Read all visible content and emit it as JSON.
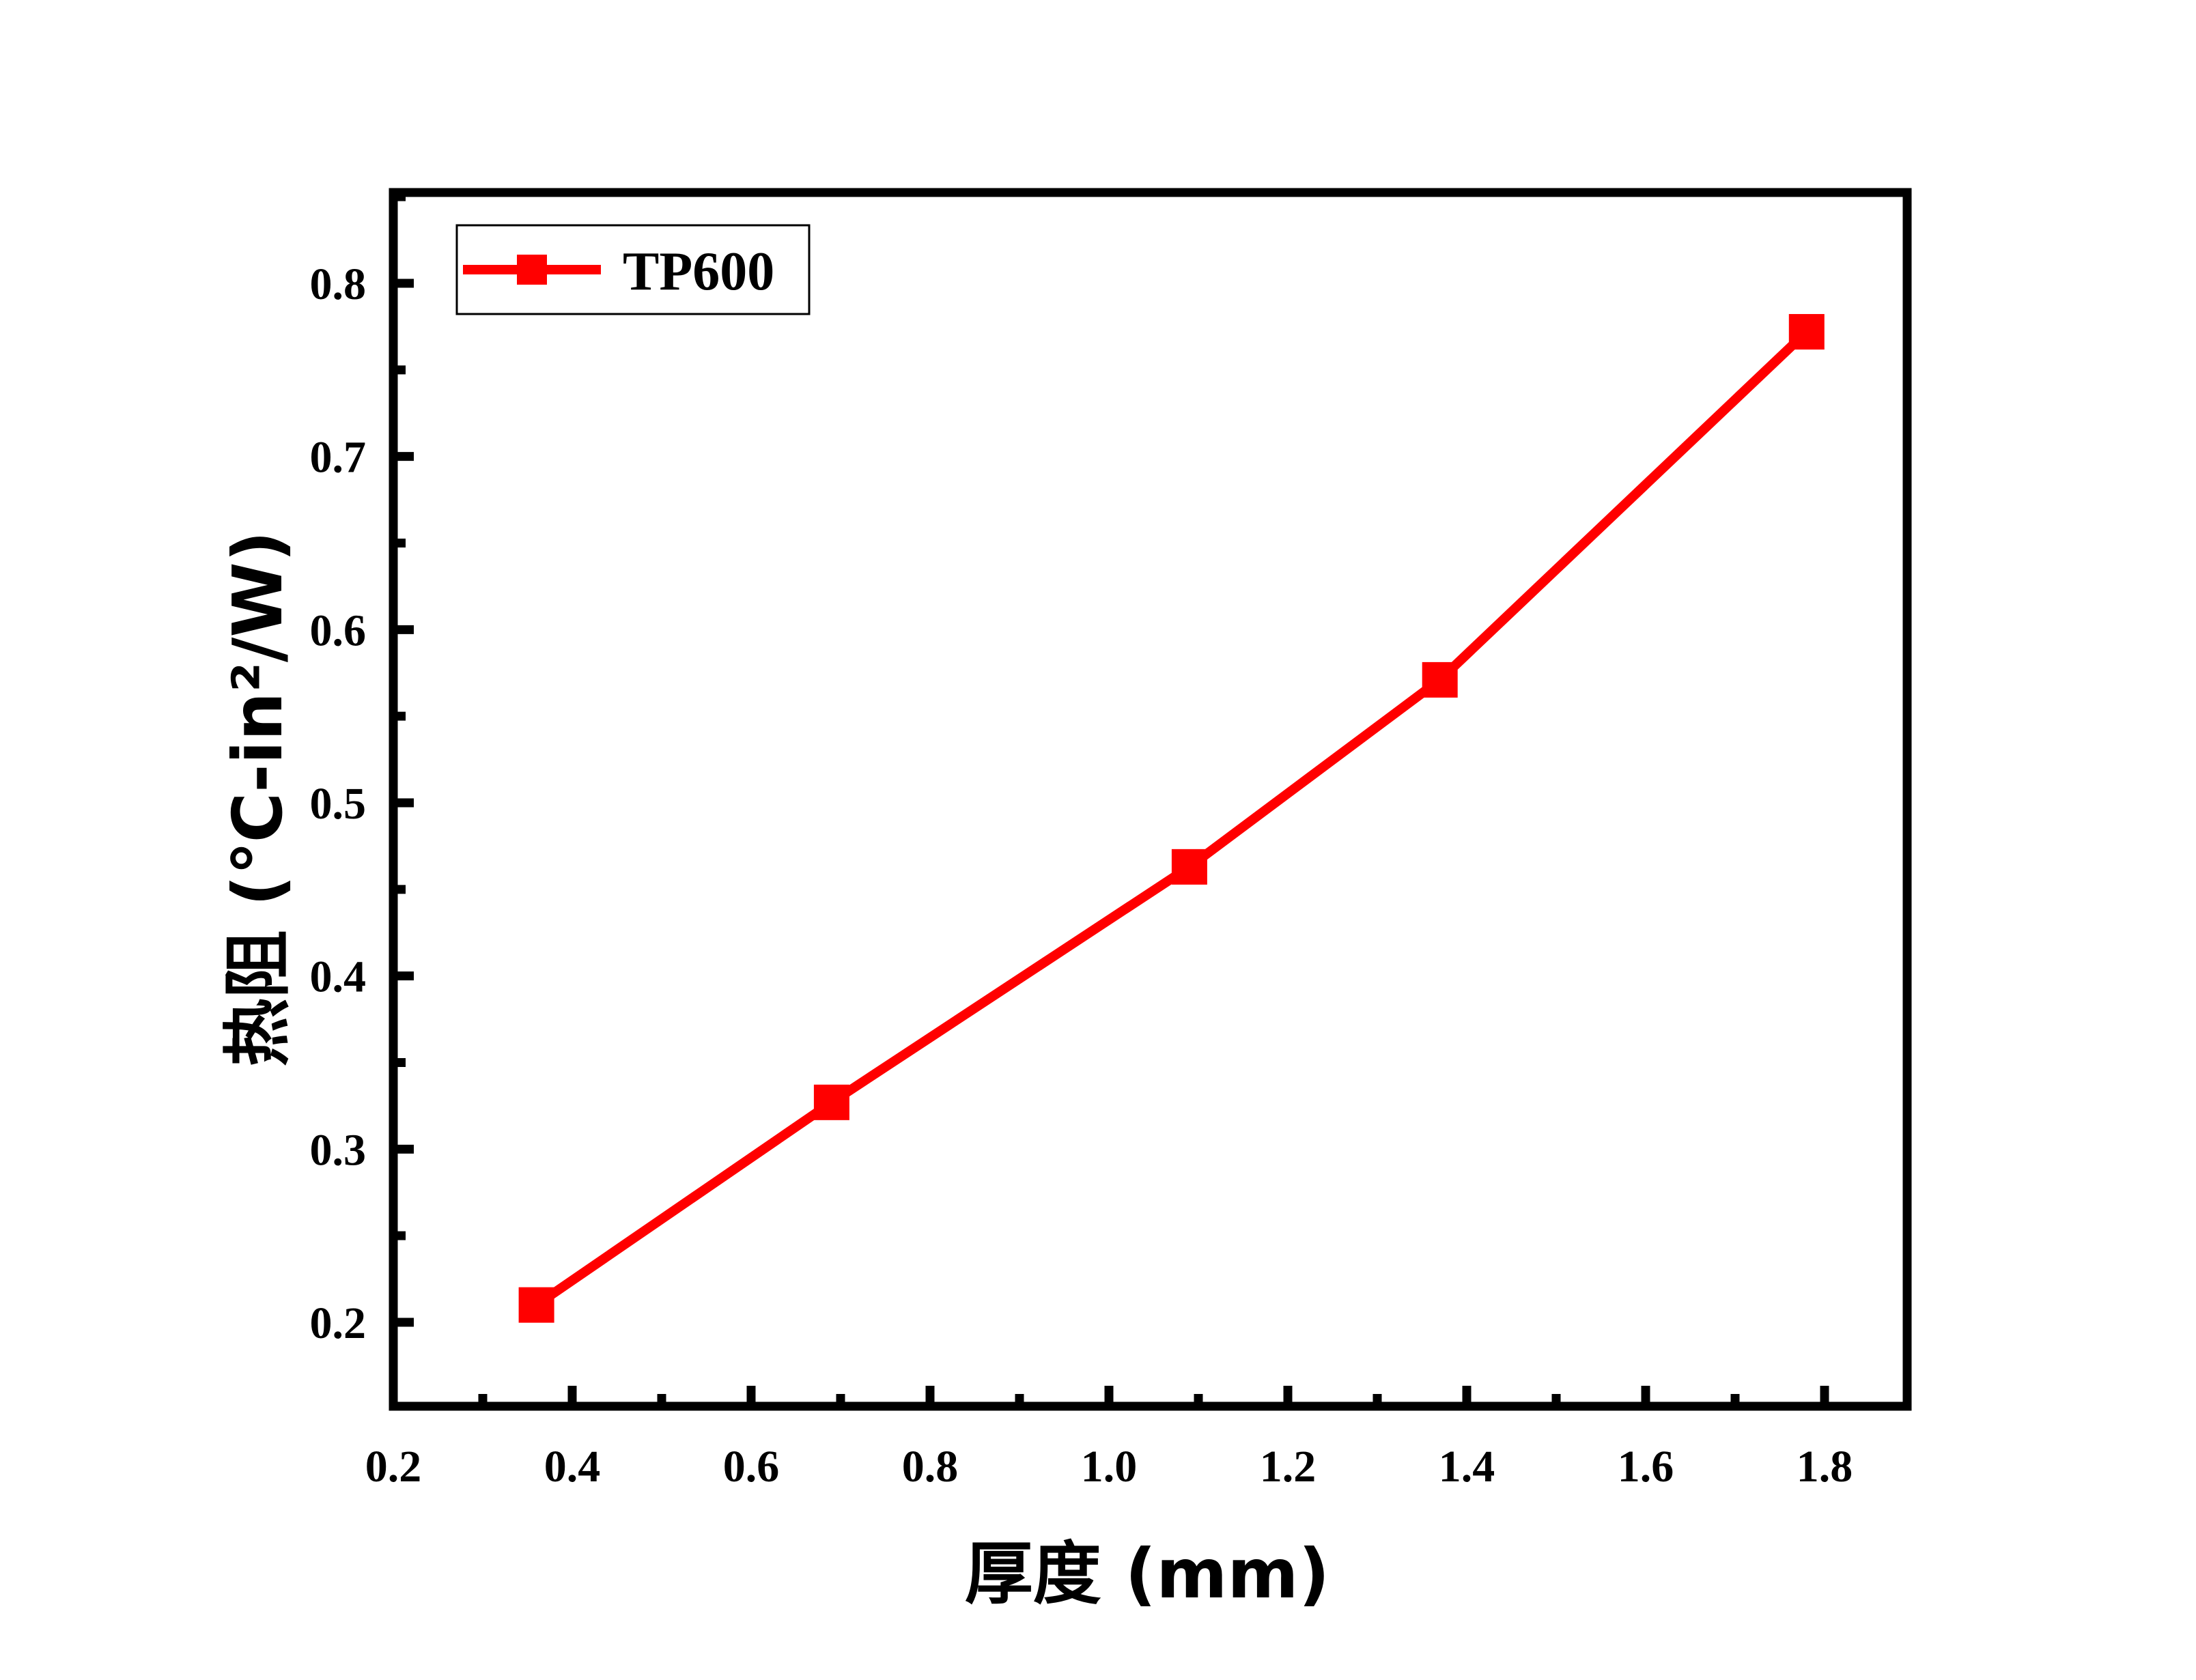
{
  "chart_data": {
    "type": "line",
    "title": "",
    "xlabel": "厚度 (mm)",
    "ylabel": "热阻 (℃-in²/W)",
    "xlim": [
      0.2,
      1.9
    ],
    "ylim": [
      0.15,
      0.85
    ],
    "xticks": [
      "0.2",
      "0.4",
      "0.6",
      "0.8",
      "1.0",
      "1.2",
      "1.4",
      "1.6",
      "1.8"
    ],
    "yticks": [
      "0.2",
      "0.3",
      "0.4",
      "0.5",
      "0.6",
      "0.7",
      "0.8"
    ],
    "grid": false,
    "legend": "top-left",
    "series": [
      {
        "name": "TP600",
        "color": "#ff0000",
        "marker": "square",
        "x": [
          0.36,
          0.69,
          1.09,
          1.37,
          1.78
        ],
        "y": [
          0.21,
          0.327,
          0.463,
          0.571,
          0.772
        ]
      }
    ]
  }
}
